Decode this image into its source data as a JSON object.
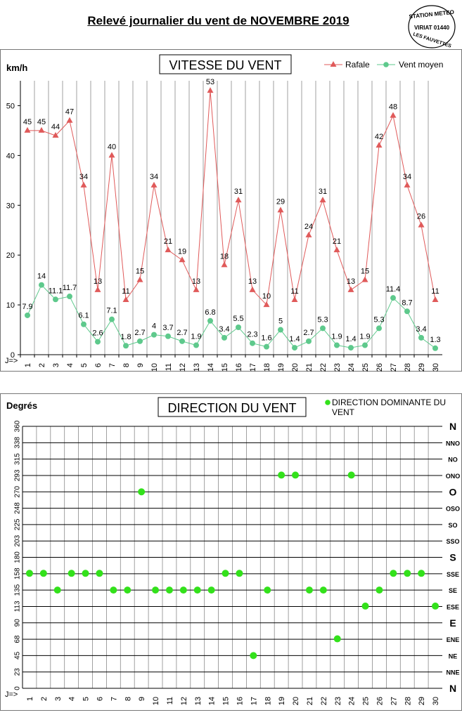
{
  "page": {
    "title": "Relevé journalier du vent de NOVEMBRE 2019",
    "stamp": {
      "line1": "STATION METEO",
      "line2": "VIRIAT 01440",
      "line3": "LES FAUVETTES"
    }
  },
  "colors": {
    "gust": "#e05a5a",
    "mean": "#5ec98c",
    "direction": "#33e11b"
  },
  "chart_data": [
    {
      "type": "line",
      "title": "VITESSE DU VENT",
      "ylabel": "km/h",
      "xlabel_prefix": "J=>",
      "ylim": [
        0,
        55
      ],
      "yticks": [
        0,
        10,
        20,
        30,
        40,
        50
      ],
      "grid": "vertical",
      "legend_position": "top-right",
      "x": [
        1,
        2,
        3,
        4,
        5,
        6,
        7,
        8,
        9,
        10,
        11,
        12,
        13,
        14,
        15,
        16,
        17,
        18,
        19,
        20,
        21,
        22,
        23,
        24,
        25,
        26,
        27,
        28,
        29,
        30
      ],
      "series": [
        {
          "name": "Rafale",
          "marker": "triangle",
          "values": [
            45,
            45,
            44,
            47,
            34,
            13,
            40,
            11,
            15,
            34,
            21,
            19,
            13,
            53,
            18,
            31,
            13,
            10,
            29,
            11,
            24,
            31,
            21,
            13,
            15,
            42,
            48,
            34,
            26,
            11
          ]
        },
        {
          "name": "Vent moyen",
          "marker": "circle",
          "values": [
            7.9,
            14,
            11.1,
            11.7,
            6.1,
            2.6,
            7.1,
            1.8,
            2.7,
            4,
            3.7,
            2.7,
            1.9,
            6.8,
            3.4,
            5.5,
            2.3,
            1.6,
            5,
            1.4,
            2.7,
            5.3,
            1.9,
            1.4,
            1.9,
            5.3,
            11.4,
            8.7,
            3.4,
            1.3
          ]
        }
      ]
    },
    {
      "type": "scatter",
      "title": "DIRECTION DU VENT",
      "ylabel": "Degrés",
      "xlabel_prefix": "J=>",
      "ylim": [
        0,
        360
      ],
      "yticks": [
        "0",
        "23",
        "45",
        "68",
        "90",
        "113",
        "135",
        "158",
        "180",
        "203",
        "225",
        "248",
        "270",
        "293",
        "315",
        "338",
        "360"
      ],
      "compass_labels": [
        "N",
        "NNE",
        "NE",
        "ENE",
        "E",
        "ESE",
        "SE",
        "SSE",
        "S",
        "SSO",
        "SO",
        "OSO",
        "O",
        "ONO",
        "NO",
        "NNO",
        "N"
      ],
      "grid": "both",
      "legend_position": "top-right",
      "x": [
        1,
        2,
        3,
        4,
        5,
        6,
        7,
        8,
        9,
        10,
        11,
        12,
        13,
        14,
        15,
        16,
        17,
        18,
        19,
        20,
        21,
        22,
        23,
        24,
        25,
        26,
        27,
        28,
        29,
        30
      ],
      "series": [
        {
          "name": "DIRECTION DOMINANTE DU VENT",
          "marker": "circle",
          "values": [
            158,
            158,
            135,
            158,
            158,
            158,
            135,
            135,
            270,
            135,
            135,
            135,
            135,
            135,
            158,
            158,
            45,
            135,
            293,
            293,
            135,
            135,
            68,
            293,
            113,
            135,
            158,
            158,
            158,
            113
          ]
        }
      ]
    }
  ]
}
